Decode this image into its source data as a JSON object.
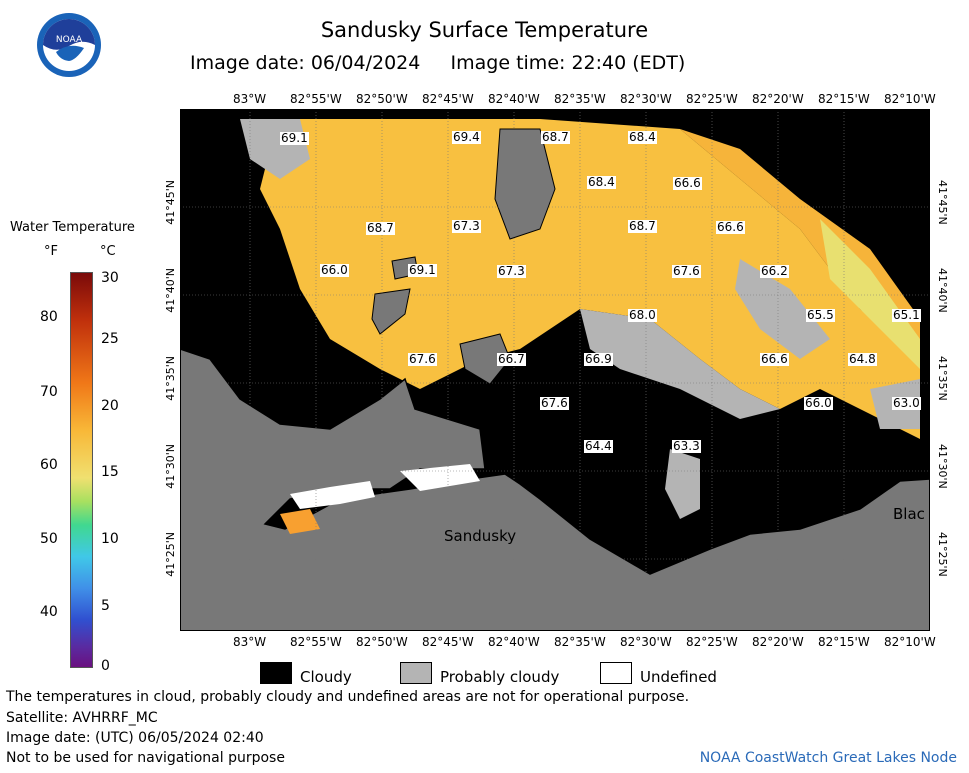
{
  "header": {
    "title": "Sandusky Surface Temperature",
    "subtitle": "Image date: 06/04/2024     Image time: 22:40 (EDT)",
    "logo_text": "NOAA"
  },
  "legend": {
    "title": "Water Temperature",
    "unit_f": "°F",
    "unit_c": "°C",
    "fahrenheit_ticks": [
      "80",
      "70",
      "60",
      "50",
      "40"
    ],
    "celsius_ticks": [
      "30",
      "25",
      "20",
      "15",
      "10",
      "5",
      "0"
    ]
  },
  "axes": {
    "lon_top": [
      "83°W",
      "82°55'W",
      "82°50'W",
      "82°45'W",
      "82°40'W",
      "82°35'W",
      "82°30'W",
      "82°25'W",
      "82°20'W",
      "82°15'W",
      "82°10'W"
    ],
    "lon_bottom": [
      "83°W",
      "82°55'W",
      "82°50'W",
      "82°45'W",
      "82°40'W",
      "82°35'W",
      "82°30'W",
      "82°25'W",
      "82°20'W",
      "82°15'W",
      "82°10'W"
    ],
    "lat_left": [
      "41°45'N",
      "41°40'N",
      "41°35'N",
      "41°30'N",
      "41°25'N"
    ],
    "lat_right": [
      "41°45'N",
      "41°40'N",
      "41°35'N",
      "41°30'N",
      "41°25'N"
    ]
  },
  "places": {
    "sandusky": "Sandusky",
    "blac": "Blac"
  },
  "temperature_labels": [
    "69.1",
    "69.4",
    "68.7",
    "68.4",
    "68.4",
    "66.6",
    "68.7",
    "67.3",
    "68.7",
    "66.6",
    "66.0",
    "69.1",
    "67.3",
    "67.6",
    "66.2",
    "68.0",
    "65.5",
    "65.1",
    "67.6",
    "66.7",
    "66.9",
    "66.6",
    "64.8",
    "67.6",
    "66.0",
    "63.0",
    "64.4",
    "63.3"
  ],
  "key": {
    "cloudy": "Cloudy",
    "probably_cloudy": "Probably cloudy",
    "undefined": "Undefined",
    "colors": {
      "cloudy": "#000000",
      "probably_cloudy": "#b4b4b4",
      "undefined": "#ffffff",
      "land": "#787878",
      "water_warm": "#f8c040"
    }
  },
  "notes": {
    "disclaimer": "The temperatures in cloud, probably cloudy and undefined areas are not for operational purpose.",
    "satellite": "Satellite: AVHRRF_MC",
    "utc_date": "Image date: (UTC) 06/05/2024  02:40",
    "navigation": "Not to be used for navigational purpose",
    "credit": "NOAA CoastWatch Great Lakes Node"
  }
}
